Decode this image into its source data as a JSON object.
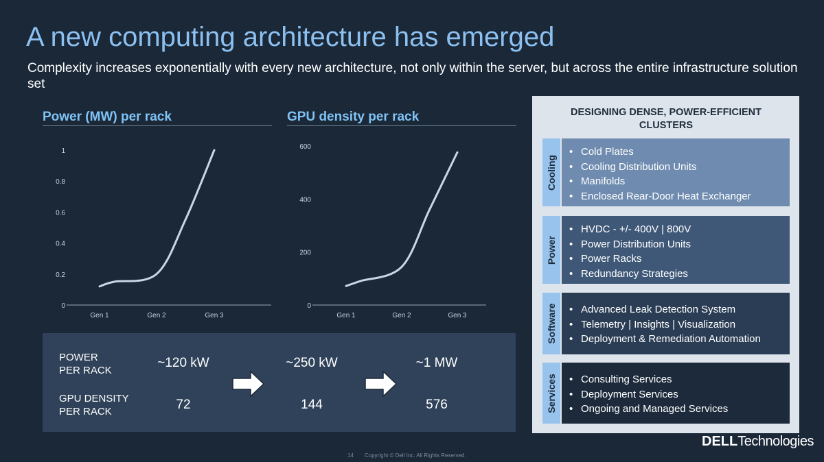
{
  "slide": {
    "title": "A new computing architecture has emerged",
    "subtitle": "Complexity increases exponentially with every new architecture, not only within the server, but across the entire infrastructure solution set"
  },
  "chart_data": [
    {
      "type": "line",
      "title": "Power (MW) per rack",
      "categories": [
        "Gen 1",
        "Gen 2",
        "Gen 3"
      ],
      "x": [
        1,
        1.25,
        2,
        2.5,
        3
      ],
      "values": [
        0.12,
        0.15,
        0.2,
        0.55,
        1.0
      ],
      "xlabel": "",
      "ylabel": "",
      "ylim": [
        0,
        1
      ],
      "yticks": [
        "0",
        "0.2",
        "0.4",
        "0.6",
        "0.8",
        "1"
      ],
      "grid": false
    },
    {
      "type": "line",
      "title": "GPU density per rack",
      "categories": [
        "Gen 1",
        "Gen 2",
        "Gen 3"
      ],
      "x": [
        1,
        1.25,
        2,
        2.5,
        3
      ],
      "values": [
        72,
        90,
        144,
        360,
        576
      ],
      "xlabel": "",
      "ylabel": "",
      "ylim": [
        0,
        600
      ],
      "yticks": [
        "0",
        "200",
        "400",
        "600"
      ],
      "grid": false
    }
  ],
  "metrics": {
    "power_label": "POWER\nPER RACK",
    "gpu_label": "GPU DENSITY\nPER RACK",
    "power": [
      "~120 kW",
      "~250 kW",
      "~1 MW"
    ],
    "gpu": [
      "72",
      "144",
      "576"
    ]
  },
  "panel": {
    "title": "DESIGNING DENSE, POWER-EFFICIENT CLUSTERS",
    "sections": [
      {
        "label": "Cooling",
        "color": "#6f8cb0",
        "items": [
          "Cold Plates",
          "Cooling Distribution Units",
          "Manifolds",
          "Enclosed Rear-Door Heat Exchanger"
        ]
      },
      {
        "label": "Power",
        "color": "#3f5878",
        "items": [
          "HVDC - +/- 400V | 800V",
          "Power Distribution Units",
          "Power Racks",
          "Redundancy Strategies"
        ]
      },
      {
        "label": "Software",
        "color": "#2a3d55",
        "items": [
          "Advanced Leak Detection System",
          "Telemetry | Insights | Visualization",
          "Deployment & Remediation Automation"
        ]
      },
      {
        "label": "Services",
        "color": "#1c2a3b",
        "items": [
          "Consulting Services",
          "Deployment Services",
          "Ongoing and Managed Services"
        ]
      }
    ]
  },
  "footer": {
    "page": "14",
    "copyright": "Copyright © Dell Inc. All Rights Reserved.",
    "logo_dell": "DELL",
    "logo_tech": "Technologies"
  },
  "colors": {
    "background": "#1b2838",
    "title": "#8cc0f0",
    "chart_title": "#7fc3f5",
    "curve": "#c9d6e6",
    "panel_bg": "#dde4ec",
    "tab": "#97c3ed"
  }
}
